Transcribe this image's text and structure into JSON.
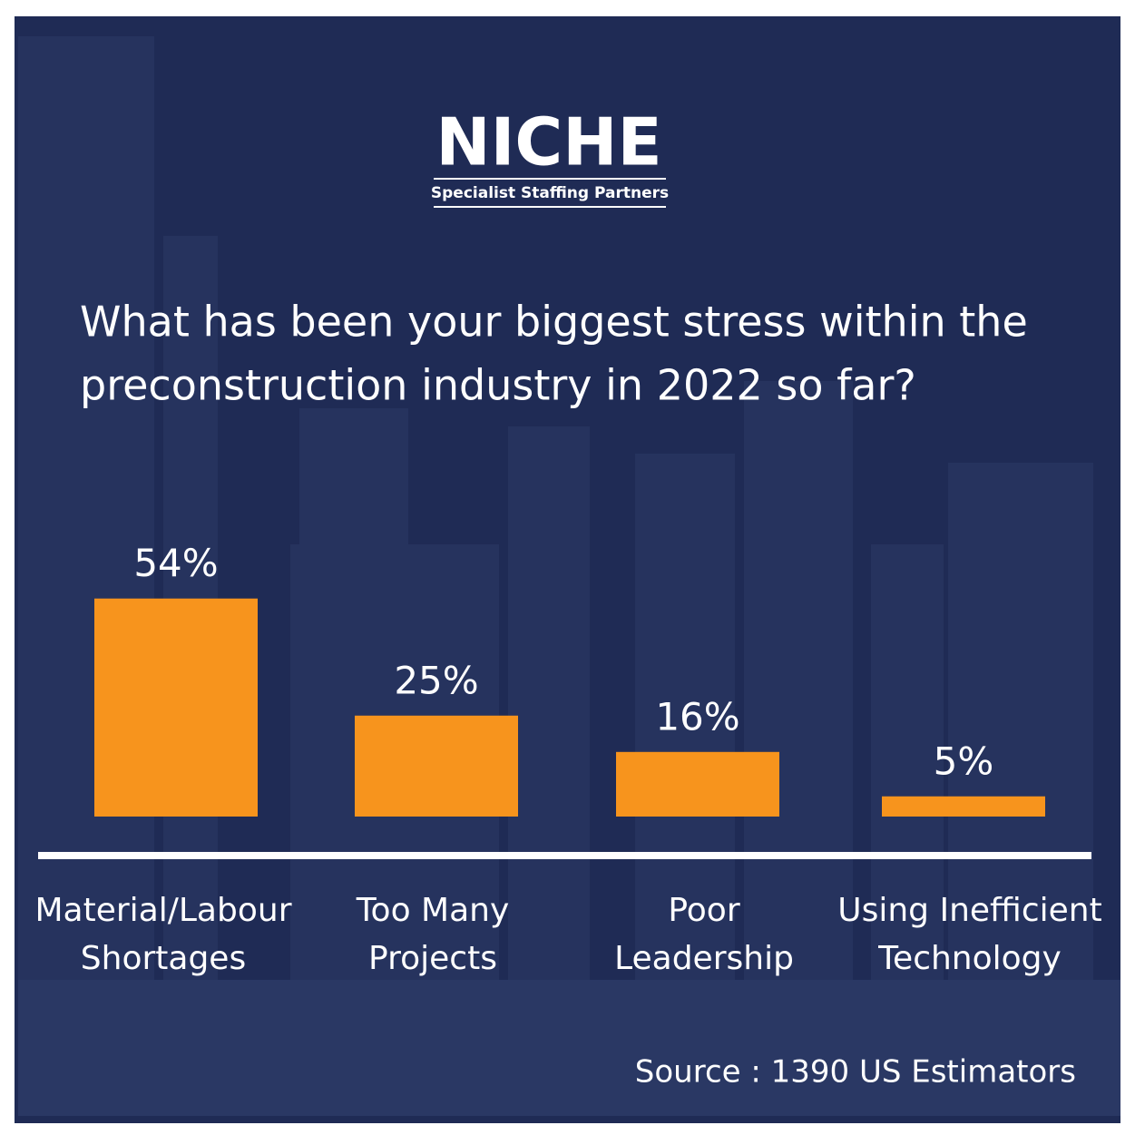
{
  "brand": {
    "name": "NICHE",
    "tagline": "Specialist Staffing Partners"
  },
  "chart_data": {
    "type": "bar",
    "title": [
      "What has been your biggest stress within the",
      "preconstruction industry in 2022 so far?"
    ],
    "categories": [
      [
        "Material/Labour",
        "Shortages"
      ],
      [
        "Too Many",
        "Projects"
      ],
      [
        "Poor",
        "Leadership"
      ],
      [
        "Using Inefficient",
        "Technology"
      ]
    ],
    "values": [
      54,
      25,
      16,
      5
    ],
    "value_labels": [
      "54%",
      "25%",
      "16%",
      "5%"
    ],
    "color": "#f7941d",
    "source": "Source : 1390 US Estimators"
  }
}
